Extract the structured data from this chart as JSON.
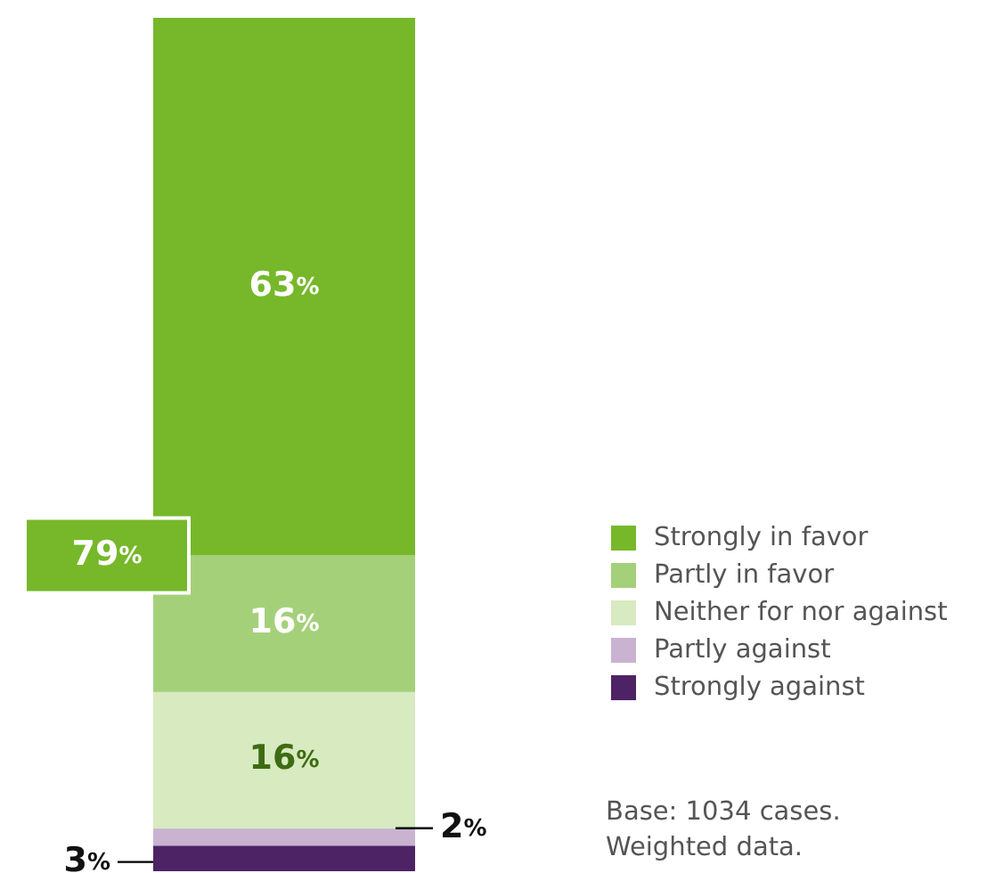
{
  "chart_data": {
    "type": "bar",
    "stacked": true,
    "categories": [
      null
    ],
    "legend": "right",
    "data_labels": true,
    "series": [
      {
        "name": "Strongly against",
        "color": "#4e2366",
        "values": [
          3
        ],
        "value_labels": [
          "3%"
        ]
      },
      {
        "name": "Partly against",
        "color": "#c9b3d0",
        "values": [
          2
        ],
        "value_labels": [
          "2%"
        ]
      },
      {
        "name": "Neither for nor against",
        "color": "#d7eac0",
        "values": [
          16
        ],
        "value_labels": [
          "16%"
        ]
      },
      {
        "name": "Partly in favor",
        "color": "#a5d07a",
        "values": [
          16
        ],
        "value_labels": [
          "16%"
        ]
      },
      {
        "name": "Strongly in favor",
        "color": "#76b82a",
        "values": [
          63
        ],
        "value_labels": [
          "63%"
        ]
      }
    ],
    "annotations": [
      "79%",
      "Base: 1034 cases.",
      "Weighted data."
    ]
  }
}
